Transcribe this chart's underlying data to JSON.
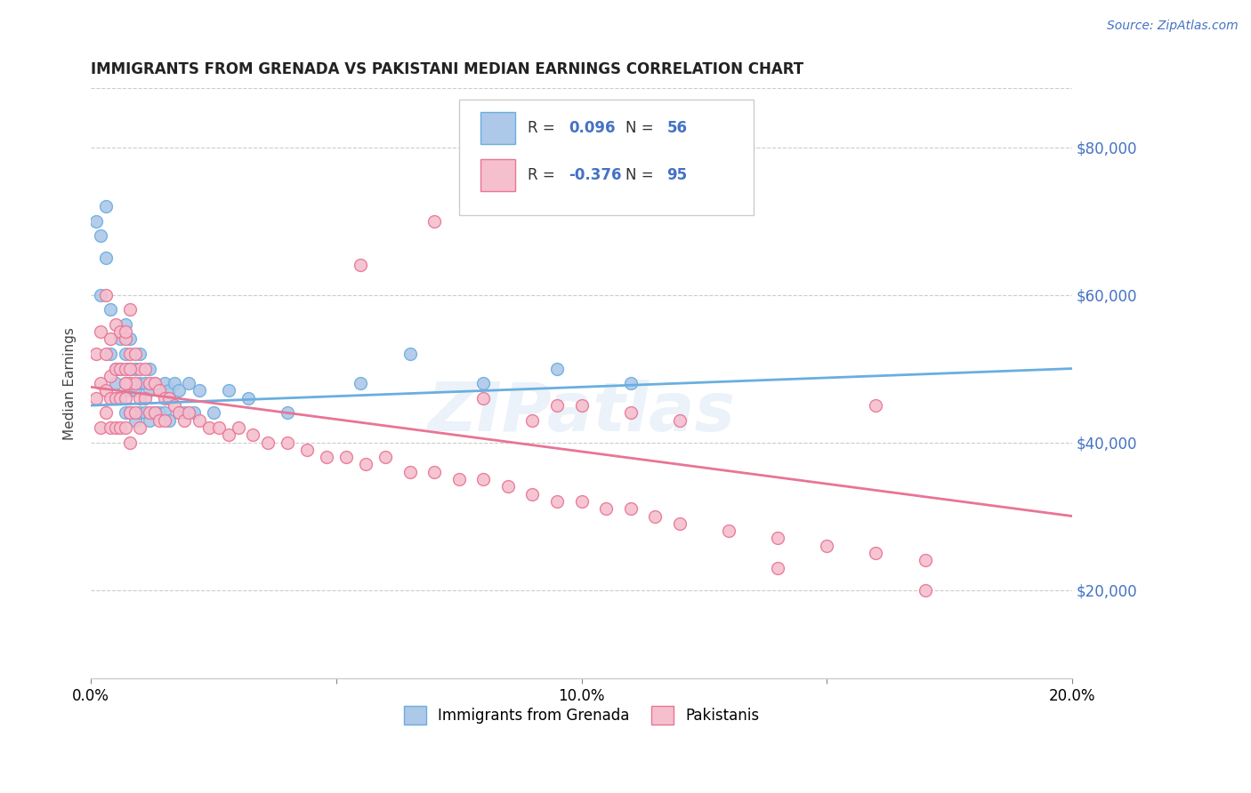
{
  "title": "IMMIGRANTS FROM GRENADA VS PAKISTANI MEDIAN EARNINGS CORRELATION CHART",
  "source_text": "Source: ZipAtlas.com",
  "ylabel": "Median Earnings",
  "xlim": [
    0.0,
    0.2
  ],
  "ylim": [
    8000,
    88000
  ],
  "yticks": [
    20000,
    40000,
    60000,
    80000
  ],
  "ytick_labels": [
    "$20,000",
    "$40,000",
    "$60,000",
    "$80,000"
  ],
  "xticks": [
    0.0,
    0.05,
    0.1,
    0.15,
    0.2
  ],
  "xtick_labels": [
    "0.0%",
    "",
    "10.0%",
    "",
    "20.0%"
  ],
  "blue_R": 0.096,
  "blue_N": 56,
  "pink_R": -0.376,
  "pink_N": 95,
  "legend_label_blue": "Immigrants from Grenada",
  "legend_label_pink": "Pakistanis",
  "blue_color": "#adc8e8",
  "blue_edge": "#6aaee0",
  "pink_color": "#f5bfce",
  "pink_edge": "#e87595",
  "blue_line_color": "#6aaee0",
  "pink_line_color": "#e87595",
  "watermark": "ZIPatlas",
  "blue_scatter_x": [
    0.001,
    0.002,
    0.002,
    0.003,
    0.003,
    0.004,
    0.004,
    0.005,
    0.005,
    0.005,
    0.006,
    0.006,
    0.006,
    0.007,
    0.007,
    0.007,
    0.007,
    0.008,
    0.008,
    0.008,
    0.008,
    0.009,
    0.009,
    0.009,
    0.01,
    0.01,
    0.01,
    0.011,
    0.011,
    0.012,
    0.012,
    0.012,
    0.013,
    0.013,
    0.014,
    0.014,
    0.015,
    0.015,
    0.016,
    0.016,
    0.017,
    0.018,
    0.018,
    0.019,
    0.02,
    0.021,
    0.022,
    0.025,
    0.028,
    0.032,
    0.04,
    0.055,
    0.065,
    0.08,
    0.095,
    0.11
  ],
  "blue_scatter_y": [
    70000,
    68000,
    60000,
    72000,
    65000,
    58000,
    52000,
    48000,
    50000,
    46000,
    46000,
    50000,
    54000,
    44000,
    48000,
    52000,
    56000,
    44000,
    47000,
    50000,
    54000,
    43000,
    47000,
    50000,
    44000,
    48000,
    52000,
    44000,
    48000,
    43000,
    47000,
    50000,
    44000,
    48000,
    44000,
    47000,
    44000,
    48000,
    43000,
    47000,
    48000,
    44000,
    47000,
    44000,
    48000,
    44000,
    47000,
    44000,
    47000,
    46000,
    44000,
    48000,
    52000,
    48000,
    50000,
    48000
  ],
  "pink_scatter_x": [
    0.001,
    0.001,
    0.002,
    0.002,
    0.002,
    0.003,
    0.003,
    0.003,
    0.003,
    0.004,
    0.004,
    0.004,
    0.004,
    0.005,
    0.005,
    0.005,
    0.005,
    0.006,
    0.006,
    0.006,
    0.006,
    0.007,
    0.007,
    0.007,
    0.007,
    0.008,
    0.008,
    0.008,
    0.008,
    0.009,
    0.009,
    0.009,
    0.01,
    0.01,
    0.01,
    0.011,
    0.011,
    0.012,
    0.012,
    0.013,
    0.013,
    0.014,
    0.014,
    0.015,
    0.015,
    0.016,
    0.017,
    0.018,
    0.019,
    0.02,
    0.022,
    0.024,
    0.026,
    0.028,
    0.03,
    0.033,
    0.036,
    0.04,
    0.044,
    0.048,
    0.052,
    0.056,
    0.06,
    0.065,
    0.07,
    0.075,
    0.08,
    0.085,
    0.09,
    0.095,
    0.1,
    0.105,
    0.11,
    0.115,
    0.12,
    0.13,
    0.14,
    0.15,
    0.16,
    0.17,
    0.055,
    0.07,
    0.08,
    0.09,
    0.095,
    0.1,
    0.11,
    0.12,
    0.14,
    0.16,
    0.007,
    0.007,
    0.008,
    0.008,
    0.17
  ],
  "pink_scatter_y": [
    52000,
    46000,
    55000,
    48000,
    42000,
    60000,
    52000,
    47000,
    44000,
    54000,
    49000,
    46000,
    42000,
    56000,
    50000,
    46000,
    42000,
    55000,
    50000,
    46000,
    42000,
    54000,
    50000,
    46000,
    42000,
    52000,
    48000,
    44000,
    40000,
    52000,
    48000,
    44000,
    50000,
    46000,
    42000,
    50000,
    46000,
    48000,
    44000,
    48000,
    44000,
    47000,
    43000,
    46000,
    43000,
    46000,
    45000,
    44000,
    43000,
    44000,
    43000,
    42000,
    42000,
    41000,
    42000,
    41000,
    40000,
    40000,
    39000,
    38000,
    38000,
    37000,
    38000,
    36000,
    36000,
    35000,
    35000,
    34000,
    33000,
    32000,
    32000,
    31000,
    31000,
    30000,
    29000,
    28000,
    27000,
    26000,
    25000,
    24000,
    64000,
    70000,
    46000,
    43000,
    45000,
    45000,
    44000,
    43000,
    23000,
    45000,
    55000,
    48000,
    58000,
    50000,
    20000
  ]
}
